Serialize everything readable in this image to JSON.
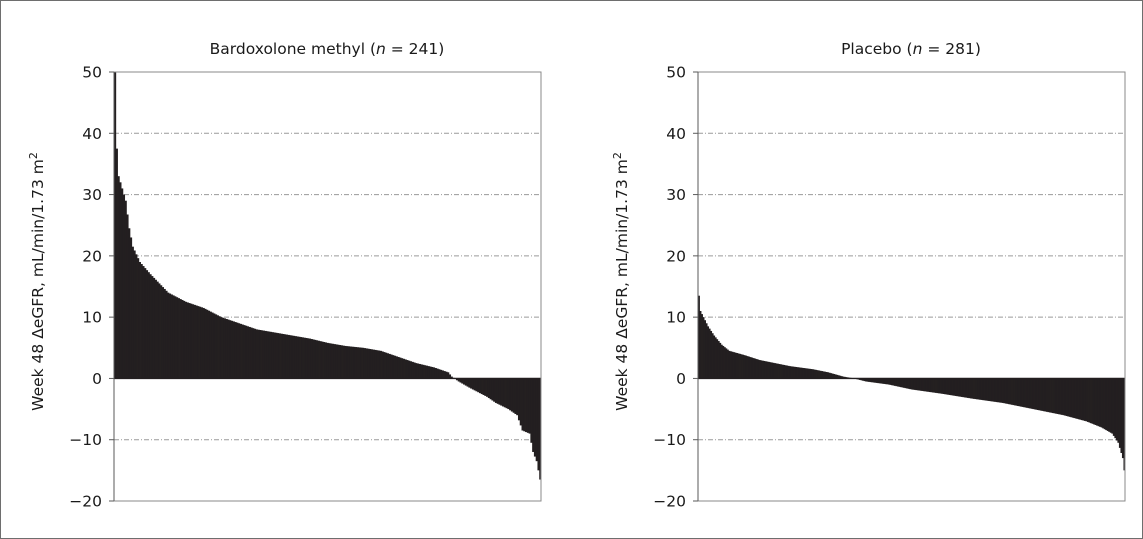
{
  "chart_data": [
    {
      "type": "bar",
      "title": "Bardoxolone methyl (n = 241)",
      "title_parts": {
        "prefix": "Bardoxolone methyl (",
        "italic": "n",
        "suffix": " = 241)"
      },
      "n": 241,
      "ylabel": "Week 48 ΔeGFR, mL/min/1.73 m²",
      "ylabel_parts": {
        "main": "Week 48 ΔeGFR, mL/min/1.73 m",
        "sup": "2"
      },
      "xlabel": "",
      "ylim": [
        -20,
        50
      ],
      "yticks": [
        -20,
        -10,
        0,
        10,
        20,
        30,
        40,
        50
      ],
      "yticklabels": [
        "−20",
        "−10",
        "0",
        "10",
        "20",
        "30",
        "40",
        "50"
      ],
      "grid": "horizontal dashed",
      "bar_color": "#231f20",
      "sorted": "descending",
      "profile_anchors": [
        [
          0,
          50
        ],
        [
          1,
          37.5
        ],
        [
          2,
          33
        ],
        [
          4,
          31
        ],
        [
          6,
          29
        ],
        [
          8,
          24.5
        ],
        [
          10,
          21.5
        ],
        [
          14,
          19
        ],
        [
          20,
          17
        ],
        [
          30,
          14
        ],
        [
          40,
          12.5
        ],
        [
          50,
          11.5
        ],
        [
          60,
          10
        ],
        [
          70,
          9
        ],
        [
          80,
          8
        ],
        [
          90,
          7.5
        ],
        [
          100,
          7
        ],
        [
          110,
          6.5
        ],
        [
          120,
          5.8
        ],
        [
          130,
          5.3
        ],
        [
          140,
          5
        ],
        [
          150,
          4.5
        ],
        [
          160,
          3.5
        ],
        [
          170,
          2.5
        ],
        [
          180,
          1.8
        ],
        [
          188,
          1
        ],
        [
          190,
          0.3
        ],
        [
          194,
          -0.5
        ],
        [
          200,
          -1.5
        ],
        [
          210,
          -3
        ],
        [
          215,
          -4
        ],
        [
          222,
          -5
        ],
        [
          227,
          -6
        ],
        [
          230,
          -8.5
        ],
        [
          234,
          -9
        ],
        [
          236,
          -12
        ],
        [
          238,
          -13.5
        ],
        [
          240,
          -16.5
        ]
      ]
    },
    {
      "type": "bar",
      "title": "Placebo (n = 281)",
      "title_parts": {
        "prefix": "Placebo (",
        "italic": "n",
        "suffix": " = 281)"
      },
      "n": 281,
      "ylabel": "Week 48 ΔeGFR, mL/min/1.73 m²",
      "ylabel_parts": {
        "main": "Week 48 ΔeGFR, mL/min/1.73 m",
        "sup": "2"
      },
      "xlabel": "",
      "ylim": [
        -20,
        50
      ],
      "yticks": [
        -20,
        -10,
        0,
        10,
        20,
        30,
        40,
        50
      ],
      "yticklabels": [
        "−20",
        "−10",
        "0",
        "10",
        "20",
        "30",
        "40",
        "50"
      ],
      "grid": "horizontal dashed",
      "bar_color": "#231f20",
      "sorted": "descending",
      "profile_anchors": [
        [
          0,
          13.5
        ],
        [
          1,
          11
        ],
        [
          3,
          10
        ],
        [
          6,
          8.5
        ],
        [
          10,
          7
        ],
        [
          15,
          5.5
        ],
        [
          20,
          4.5
        ],
        [
          30,
          3.8
        ],
        [
          40,
          3
        ],
        [
          50,
          2.5
        ],
        [
          60,
          2
        ],
        [
          75,
          1.5
        ],
        [
          85,
          1
        ],
        [
          95,
          0.3
        ],
        [
          102,
          0
        ],
        [
          110,
          -0.5
        ],
        [
          125,
          -1
        ],
        [
          140,
          -1.8
        ],
        [
          160,
          -2.5
        ],
        [
          180,
          -3.3
        ],
        [
          200,
          -4
        ],
        [
          220,
          -5
        ],
        [
          240,
          -6
        ],
        [
          255,
          -7
        ],
        [
          265,
          -8
        ],
        [
          272,
          -9
        ],
        [
          276,
          -10.5
        ],
        [
          279,
          -13
        ],
        [
          280,
          -15
        ]
      ]
    }
  ]
}
